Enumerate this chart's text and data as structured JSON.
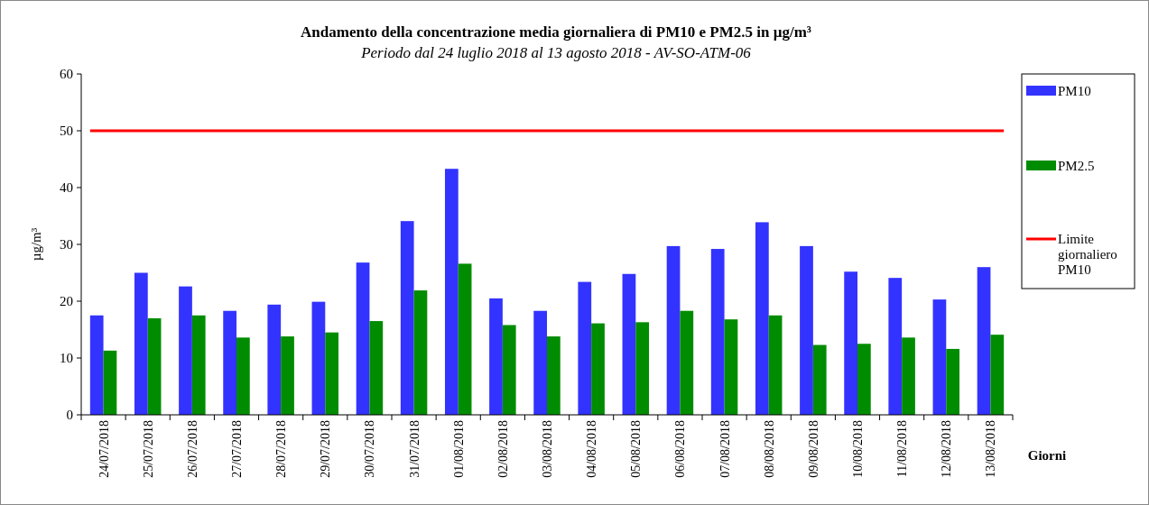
{
  "chart_data": {
    "type": "bar",
    "title": "Andamento della concentrazione media giornaliera di PM10 e PM2.5 in µg/m³",
    "subtitle": "Periodo dal 24 luglio 2018 al 13 agosto 2018 - AV-SO-ATM-06",
    "xlabel": "Giorni",
    "ylabel": "µg/m³",
    "categories": [
      "24/07/2018",
      "25/07/2018",
      "26/07/2018",
      "27/07/2018",
      "28/07/2018",
      "29/07/2018",
      "30/07/2018",
      "31/07/2018",
      "01/08/2018",
      "02/08/2018",
      "03/08/2018",
      "04/08/2018",
      "05/08/2018",
      "06/08/2018",
      "07/08/2018",
      "08/08/2018",
      "09/08/2018",
      "10/08/2018",
      "11/08/2018",
      "12/08/2018",
      "13/08/2018"
    ],
    "series": [
      {
        "name": "PM10",
        "color": "#3333ff",
        "values": [
          17.5,
          25,
          22.6,
          18.3,
          19.4,
          19.9,
          26.8,
          34.1,
          43.3,
          20.5,
          18.3,
          23.4,
          24.8,
          29.7,
          29.2,
          33.9,
          29.7,
          25.2,
          24.1,
          20.3,
          26.0
        ]
      },
      {
        "name": "PM2.5",
        "color": "#008c00",
        "values": [
          11.3,
          17.0,
          17.5,
          13.6,
          13.8,
          14.5,
          16.5,
          21.9,
          26.6,
          15.8,
          13.8,
          16.1,
          16.3,
          18.3,
          16.8,
          17.5,
          12.3,
          12.5,
          13.6,
          11.6,
          14.1
        ]
      }
    ],
    "ylim": [
      0,
      60
    ],
    "yticks": [
      0,
      10,
      20,
      30,
      40,
      50,
      60
    ],
    "grid": false,
    "legend": "right",
    "ref_lines": [
      {
        "axis": "y",
        "value": 50,
        "label": "Limite giornaliero PM10",
        "color": "#ff0000"
      }
    ]
  }
}
